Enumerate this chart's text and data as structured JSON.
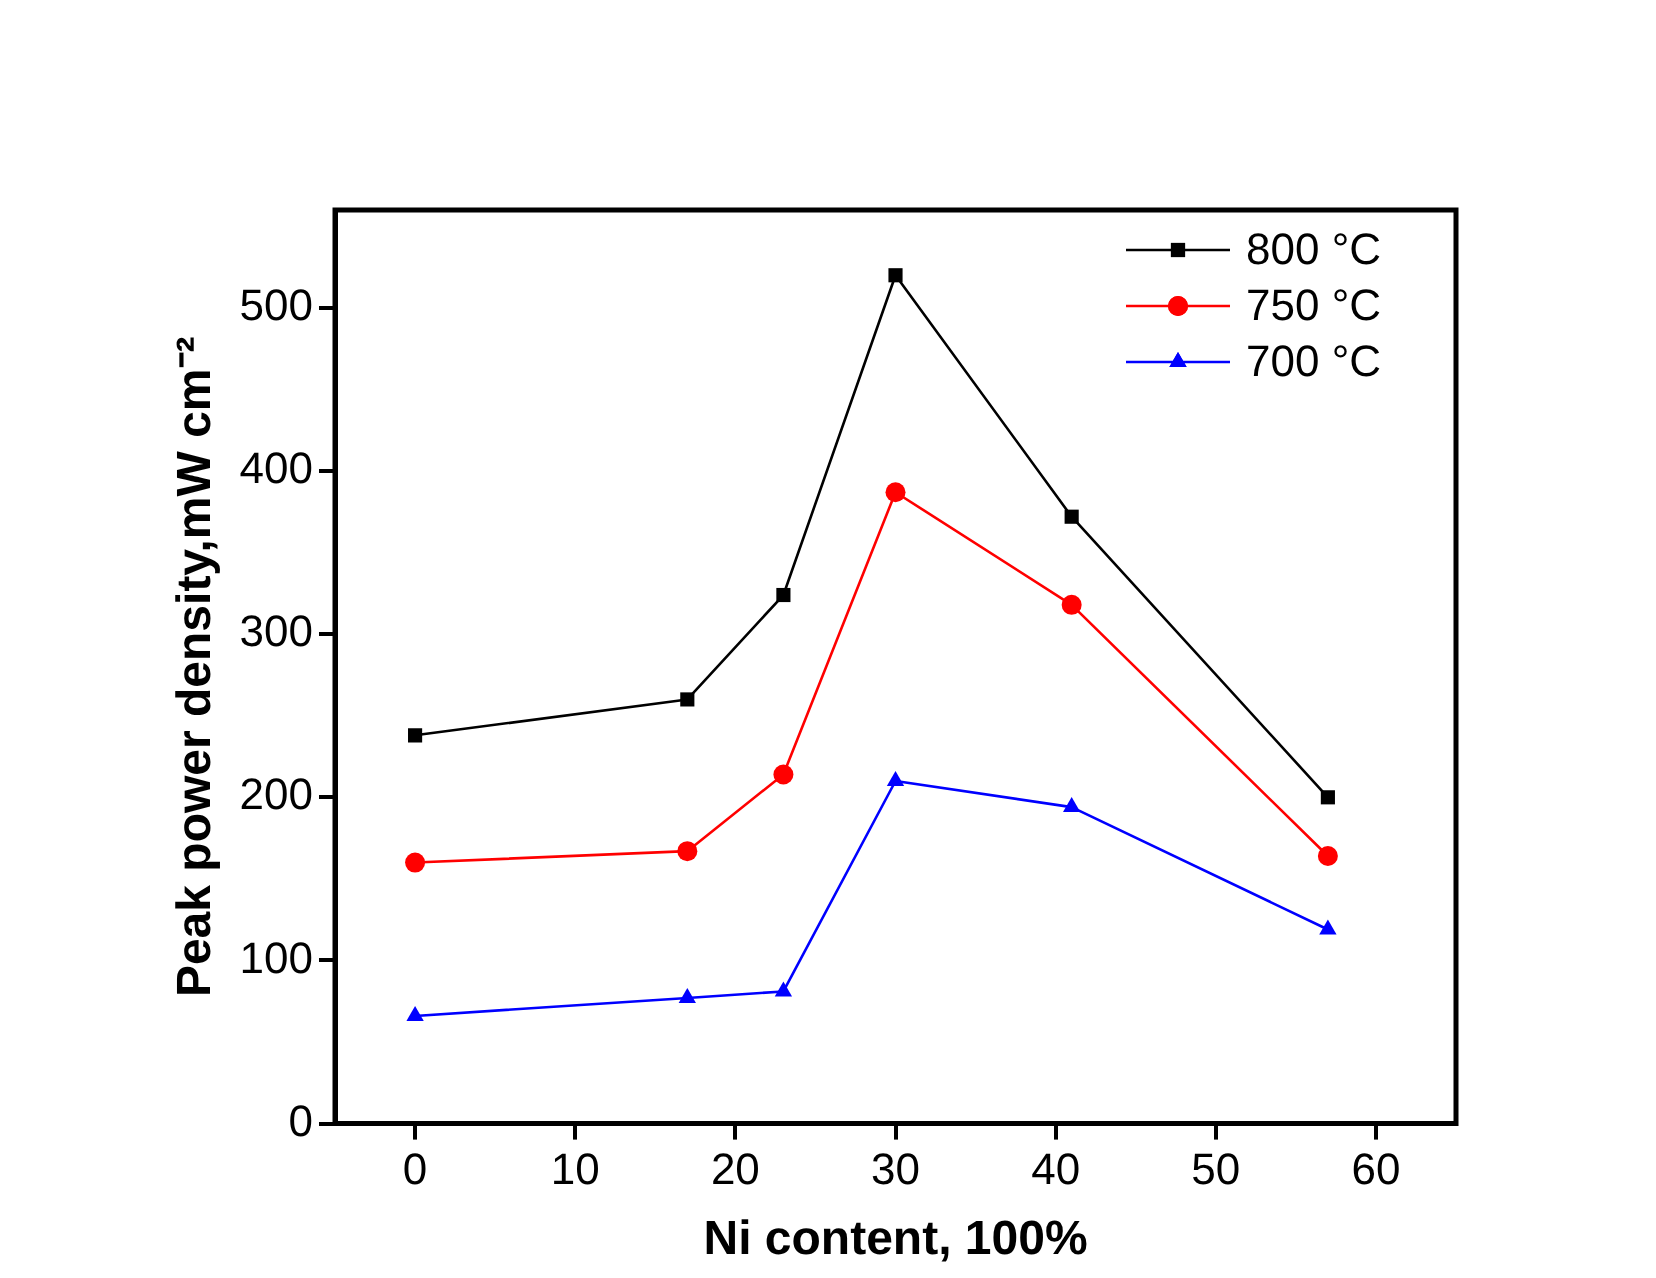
{
  "chart_data": {
    "type": "line",
    "xlabel": "Ni content, 100%",
    "ylabel": "Peak power density,mW cm⁻²",
    "x": [
      0,
      17,
      23,
      30,
      41,
      57
    ],
    "series": [
      {
        "name": "800 °C",
        "color": "#000000",
        "marker": "square",
        "values": [
          238,
          260,
          324,
          520,
          372,
          200
        ]
      },
      {
        "name": "750 °C",
        "color": "#ff0000",
        "marker": "circle",
        "values": [
          160,
          167,
          214,
          387,
          318,
          164
        ]
      },
      {
        "name": "700 °C",
        "color": "#0000ff",
        "marker": "triangle",
        "values": [
          66,
          77,
          81,
          210,
          194,
          119
        ]
      }
    ],
    "xlim": [
      -5,
      65
    ],
    "xticks": [
      0,
      10,
      20,
      30,
      40,
      50,
      60
    ],
    "ylim": [
      0,
      560
    ],
    "yticks": [
      0,
      100,
      200,
      300,
      400,
      500
    ],
    "grid": false,
    "legend": "top right",
    "line_style": "solid"
  }
}
